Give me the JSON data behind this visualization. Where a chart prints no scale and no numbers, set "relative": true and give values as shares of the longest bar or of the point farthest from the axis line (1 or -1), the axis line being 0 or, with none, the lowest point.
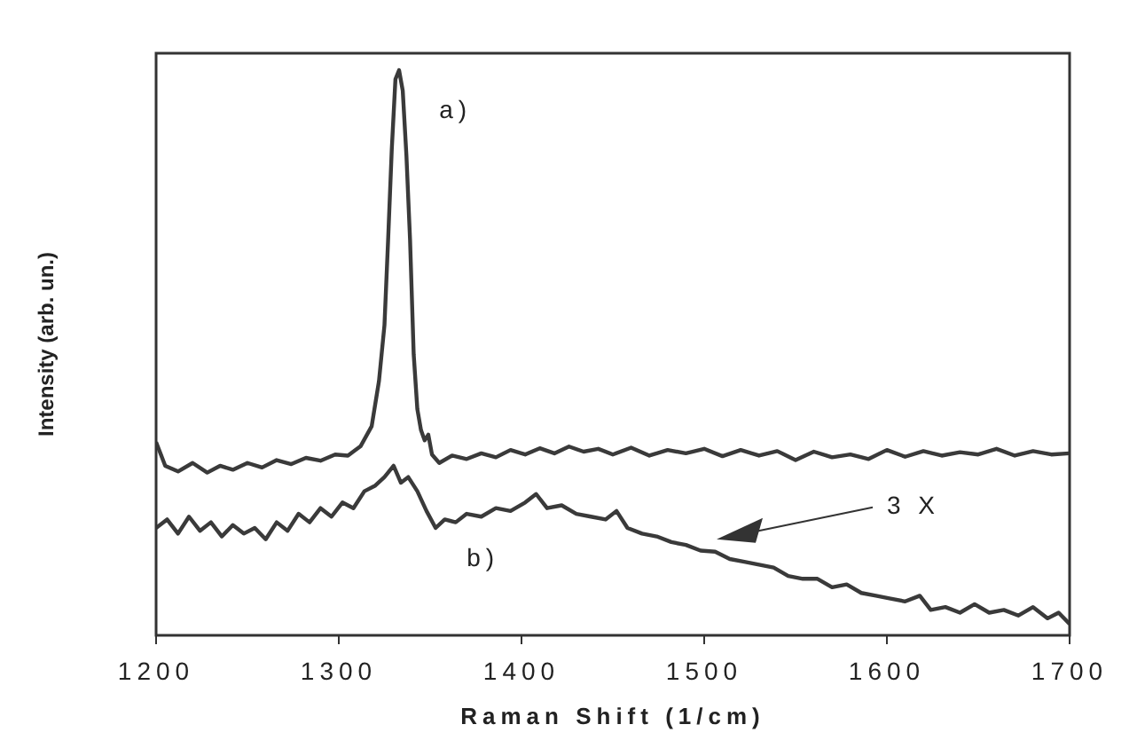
{
  "chart_data": {
    "type": "line",
    "relative": true,
    "xlabel": "Raman Shift (1/cm)",
    "ylabel": "Intensity (arb. un.)",
    "xlim": [
      1200,
      1700
    ],
    "xticks": [
      1200,
      1300,
      1400,
      1500,
      1600,
      1700
    ],
    "grid": false,
    "legend": false,
    "marker": "none",
    "line_style": "solid",
    "series": [
      {
        "color": "#3a3a3a",
        "x": [
          1200,
          1205,
          1212,
          1220,
          1228,
          1235,
          1242,
          1250,
          1258,
          1266,
          1274,
          1282,
          1290,
          1298,
          1305,
          1312,
          1318,
          1322,
          1325,
          1327,
          1329,
          1331,
          1333,
          1335,
          1337,
          1339,
          1341,
          1343,
          1345,
          1347,
          1349,
          1351,
          1355,
          1362,
          1370,
          1378,
          1386,
          1394,
          1402,
          1410,
          1418,
          1426,
          1434,
          1442,
          1450,
          1460,
          1470,
          1480,
          1490,
          1500,
          1510,
          1520,
          1530,
          1540,
          1550,
          1560,
          1570,
          1580,
          1590,
          1600,
          1610,
          1620,
          1630,
          1640,
          1650,
          1660,
          1670,
          1680,
          1690,
          1700
        ],
        "values": [
          0.342,
          0.3,
          0.29,
          0.305,
          0.288,
          0.3,
          0.293,
          0.305,
          0.297,
          0.31,
          0.303,
          0.314,
          0.309,
          0.32,
          0.318,
          0.335,
          0.37,
          0.45,
          0.549,
          0.7,
          0.86,
          0.984,
          1.0,
          0.964,
          0.85,
          0.7,
          0.497,
          0.4,
          0.363,
          0.345,
          0.355,
          0.32,
          0.305,
          0.318,
          0.312,
          0.322,
          0.315,
          0.328,
          0.32,
          0.331,
          0.322,
          0.334,
          0.325,
          0.33,
          0.32,
          0.332,
          0.318,
          0.328,
          0.322,
          0.33,
          0.317,
          0.328,
          0.318,
          0.326,
          0.31,
          0.325,
          0.315,
          0.32,
          0.312,
          0.328,
          0.316,
          0.326,
          0.318,
          0.324,
          0.32,
          0.33,
          0.318,
          0.326,
          0.32,
          0.322
        ]
      },
      {
        "color": "#3a3a3a",
        "x": [
          1200,
          1206,
          1212,
          1218,
          1224,
          1230,
          1236,
          1242,
          1248,
          1254,
          1260,
          1266,
          1272,
          1278,
          1284,
          1290,
          1296,
          1302,
          1308,
          1314,
          1320,
          1325,
          1330,
          1334,
          1338,
          1343,
          1348,
          1353,
          1358,
          1364,
          1370,
          1378,
          1386,
          1394,
          1402,
          1408,
          1414,
          1422,
          1430,
          1438,
          1446,
          1452,
          1458,
          1466,
          1474,
          1482,
          1490,
          1498,
          1506,
          1514,
          1522,
          1530,
          1538,
          1546,
          1554,
          1562,
          1570,
          1578,
          1586,
          1594,
          1602,
          1610,
          1618,
          1624,
          1632,
          1640,
          1648,
          1656,
          1664,
          1672,
          1680,
          1688,
          1694,
          1700
        ],
        "values": [
          0.19,
          0.205,
          0.18,
          0.21,
          0.185,
          0.2,
          0.175,
          0.195,
          0.18,
          0.19,
          0.17,
          0.2,
          0.185,
          0.215,
          0.2,
          0.225,
          0.21,
          0.235,
          0.225,
          0.255,
          0.265,
          0.28,
          0.3,
          0.27,
          0.28,
          0.255,
          0.22,
          0.19,
          0.205,
          0.2,
          0.215,
          0.21,
          0.225,
          0.22,
          0.235,
          0.25,
          0.225,
          0.23,
          0.215,
          0.21,
          0.205,
          0.22,
          0.19,
          0.18,
          0.175,
          0.165,
          0.16,
          0.15,
          0.148,
          0.135,
          0.13,
          0.125,
          0.12,
          0.105,
          0.1,
          0.1,
          0.085,
          0.09,
          0.075,
          0.07,
          0.065,
          0.06,
          0.07,
          0.045,
          0.05,
          0.04,
          0.055,
          0.04,
          0.045,
          0.035,
          0.05,
          0.03,
          0.04,
          0.02
        ]
      }
    ],
    "annotations": [
      "a)",
      "b)",
      "3 X"
    ]
  }
}
